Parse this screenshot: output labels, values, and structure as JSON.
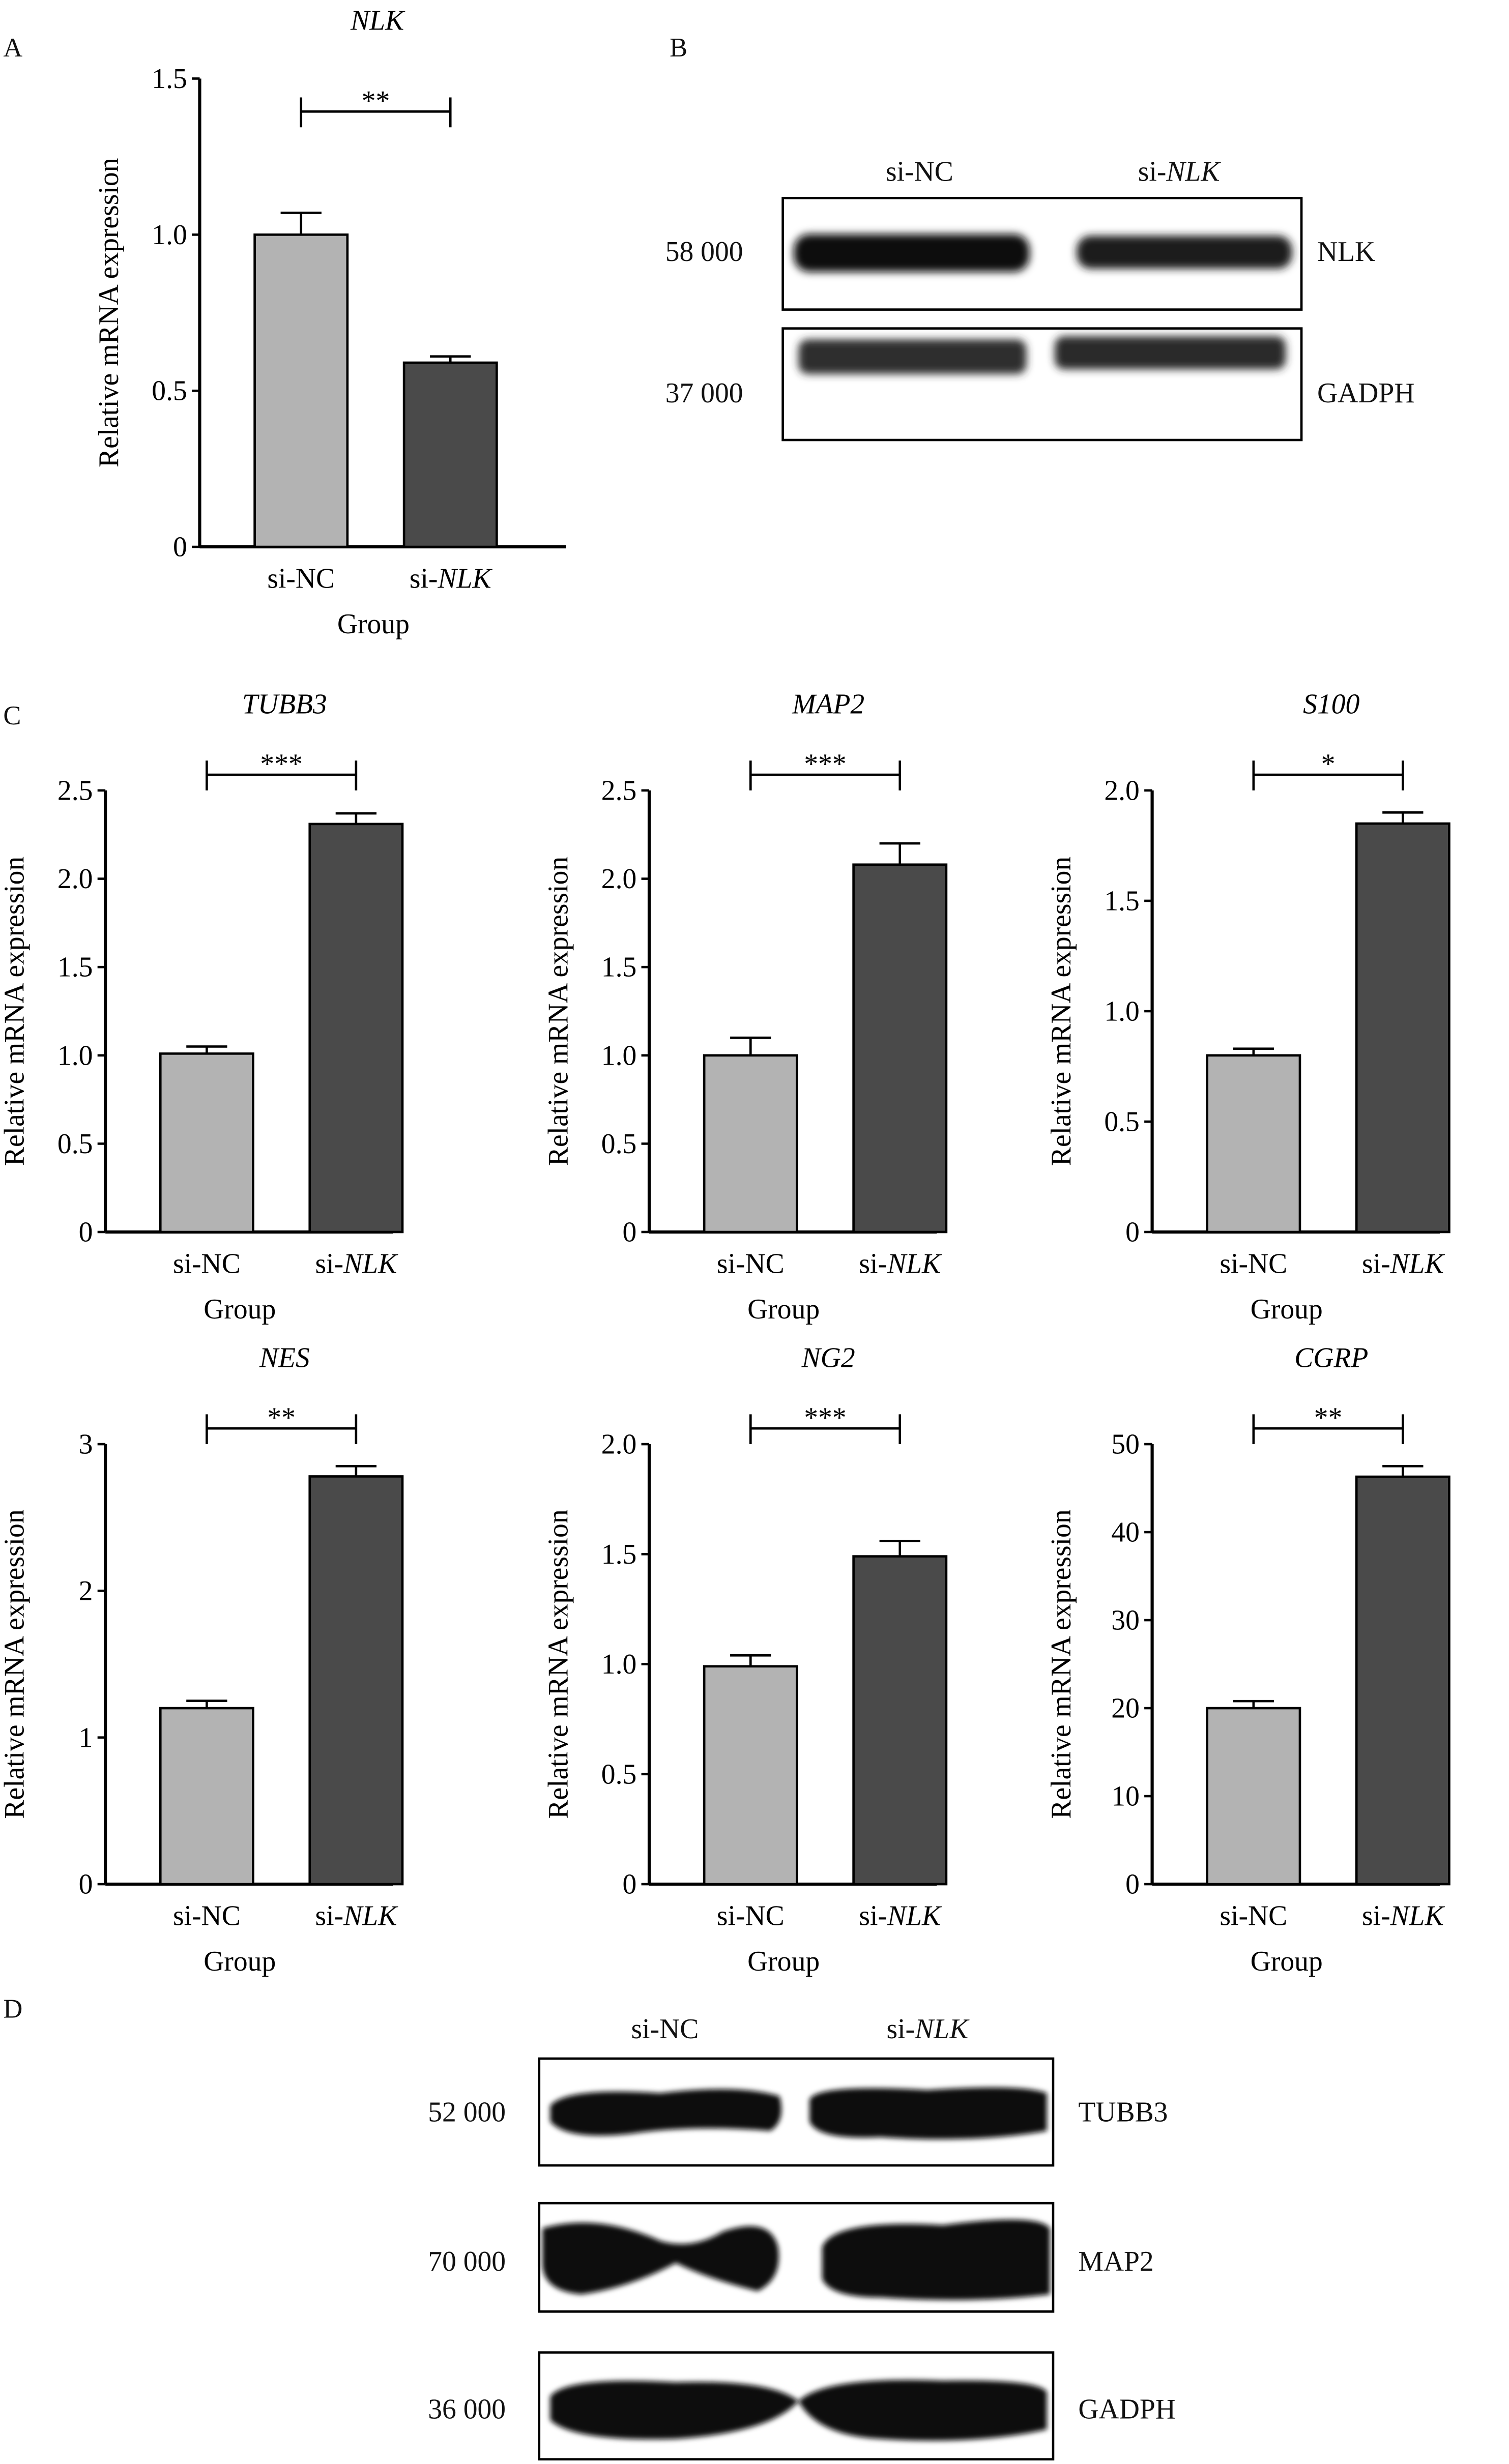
{
  "panels": {
    "a": "A",
    "b": "B",
    "c": "C",
    "d": "D"
  },
  "blot_b": {
    "lanes": [
      "si-NC",
      "si-NLK"
    ],
    "rows": [
      {
        "mw": "58 000",
        "protein": "NLK"
      },
      {
        "mw": "37 000",
        "protein": "GADPH"
      }
    ]
  },
  "blot_d": {
    "lanes": [
      "si-NC",
      "si-NLK"
    ],
    "rows": [
      {
        "mw": "52 000",
        "protein": "TUBB3"
      },
      {
        "mw": "70 000",
        "protein": "MAP2"
      },
      {
        "mw": "36 000",
        "protein": "GADPH"
      }
    ]
  },
  "colors": {
    "si_nc": "#b3b3b3",
    "si_nlk": "#4a4a4a"
  },
  "chart_data": [
    {
      "type": "bar",
      "panel": "A",
      "title": "NLK",
      "xlabel": "Group",
      "ylabel": "Relative mRNA expression",
      "categories": [
        "si-NC",
        "si-NLK"
      ],
      "values": [
        1.0,
        0.59
      ],
      "errors": [
        0.07,
        0.02
      ],
      "ylim": [
        0,
        1.5
      ],
      "yticks": [
        "0",
        "0.5",
        "1.0",
        "1.5"
      ],
      "significance": "**",
      "grid": false
    },
    {
      "type": "bar",
      "panel": "C",
      "title": "TUBB3",
      "xlabel": "Group",
      "ylabel": "Relative mRNA expression",
      "categories": [
        "si-NC",
        "si-NLK"
      ],
      "values": [
        1.01,
        2.31
      ],
      "errors": [
        0.04,
        0.06
      ],
      "ylim": [
        0,
        2.5
      ],
      "yticks": [
        "0",
        "0.5",
        "1.0",
        "1.5",
        "2.0",
        "2.5"
      ],
      "significance": "***",
      "grid": false
    },
    {
      "type": "bar",
      "panel": "C",
      "title": "MAP2",
      "xlabel": "Group",
      "ylabel": "Relative mRNA expression",
      "categories": [
        "si-NC",
        "si-NLK"
      ],
      "values": [
        1.0,
        2.08
      ],
      "errors": [
        0.1,
        0.12
      ],
      "ylim": [
        0,
        2.5
      ],
      "yticks": [
        "0",
        "0.5",
        "1.0",
        "1.5",
        "2.0",
        "2.5"
      ],
      "significance": "***",
      "grid": false
    },
    {
      "type": "bar",
      "panel": "C",
      "title": "S100",
      "xlabel": "Group",
      "ylabel": "Relative mRNA expression",
      "categories": [
        "si-NC",
        "si-NLK"
      ],
      "values": [
        0.8,
        1.85
      ],
      "errors": [
        0.03,
        0.05
      ],
      "ylim": [
        0,
        2.0
      ],
      "yticks": [
        "0",
        "0.5",
        "1.0",
        "1.5",
        "2.0"
      ],
      "significance": "*",
      "grid": false
    },
    {
      "type": "bar",
      "panel": "C",
      "title": "NES",
      "xlabel": "Group",
      "ylabel": "Relative mRNA expression",
      "categories": [
        "si-NC",
        "si-NLK"
      ],
      "values": [
        1.2,
        2.78
      ],
      "errors": [
        0.05,
        0.07
      ],
      "ylim": [
        0,
        3
      ],
      "yticks": [
        "0",
        "1",
        "2",
        "3"
      ],
      "significance": "**",
      "grid": false
    },
    {
      "type": "bar",
      "panel": "C",
      "title": "NG2",
      "xlabel": "Group",
      "ylabel": "Relative mRNA expression",
      "categories": [
        "si-NC",
        "si-NLK"
      ],
      "values": [
        0.99,
        1.49
      ],
      "errors": [
        0.05,
        0.07
      ],
      "ylim": [
        0,
        2.0
      ],
      "yticks": [
        "0",
        "0.5",
        "1.0",
        "1.5",
        "2.0"
      ],
      "significance": "***",
      "grid": false
    },
    {
      "type": "bar",
      "panel": "C",
      "title": "CGRP",
      "xlabel": "Group",
      "ylabel": "Relative mRNA expression",
      "categories": [
        "si-NC",
        "si-NLK"
      ],
      "values": [
        20,
        46.3
      ],
      "errors": [
        0.8,
        1.2
      ],
      "ylim": [
        0,
        50
      ],
      "yticks": [
        "0",
        "10",
        "20",
        "30",
        "40",
        "50"
      ],
      "significance": "**",
      "grid": false
    }
  ]
}
